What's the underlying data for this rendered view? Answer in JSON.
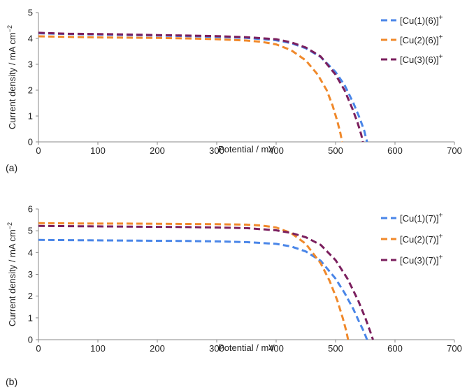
{
  "chart_data": [
    {
      "type": "line",
      "panel_label": "(a)",
      "xlabel": "Potential / mV",
      "ylabel": "Current density / mA cm",
      "ylabel_sup": "−2",
      "xlim": [
        0,
        700
      ],
      "ylim": [
        0,
        5
      ],
      "x_ticks": [
        "0",
        "100",
        "200",
        "300",
        "400",
        "500",
        "600",
        "700"
      ],
      "y_ticks": [
        "0",
        "1",
        "2",
        "3",
        "4",
        "5"
      ],
      "grid": false,
      "legend_position": "top-right",
      "series": [
        {
          "name": "[Cu(1)(6)]",
          "name_sup": "+",
          "color": "#4a86e8",
          "x": [
            0,
            50,
            100,
            150,
            200,
            250,
            300,
            350,
            400,
            425,
            450,
            475,
            500,
            515,
            530,
            540,
            548,
            553
          ],
          "y": [
            4.2,
            4.17,
            4.15,
            4.13,
            4.11,
            4.09,
            4.06,
            4.02,
            3.93,
            3.82,
            3.62,
            3.28,
            2.7,
            2.2,
            1.5,
            0.95,
            0.45,
            0.0
          ]
        },
        {
          "name": "[Cu(2)(6)]",
          "name_sup": "+",
          "color": "#f0892b",
          "x": [
            0,
            50,
            100,
            150,
            200,
            250,
            300,
            350,
            375,
            400,
            425,
            450,
            470,
            485,
            495,
            503,
            508,
            511
          ],
          "y": [
            4.08,
            4.06,
            4.04,
            4.03,
            4.02,
            4.0,
            3.97,
            3.92,
            3.87,
            3.77,
            3.55,
            3.15,
            2.6,
            2.0,
            1.4,
            0.8,
            0.35,
            0.0
          ]
        },
        {
          "name": "[Cu(3)(6)]",
          "name_sup": "+",
          "color": "#7b1f5e",
          "x": [
            0,
            50,
            100,
            150,
            200,
            250,
            300,
            350,
            400,
            425,
            450,
            475,
            500,
            515,
            528,
            537,
            543,
            546
          ],
          "y": [
            4.22,
            4.18,
            4.17,
            4.15,
            4.13,
            4.11,
            4.09,
            4.05,
            3.97,
            3.85,
            3.65,
            3.3,
            2.6,
            2.0,
            1.3,
            0.75,
            0.3,
            0.0
          ]
        }
      ]
    },
    {
      "type": "line",
      "panel_label": "(b)",
      "xlabel": "Potential / mV",
      "ylabel": "Current density / mA cm",
      "ylabel_sup": "−2",
      "xlim": [
        0,
        700
      ],
      "ylim": [
        0,
        6
      ],
      "x_ticks": [
        "0",
        "100",
        "200",
        "300",
        "400",
        "500",
        "600",
        "700"
      ],
      "y_ticks": [
        "0",
        "1",
        "2",
        "3",
        "4",
        "5",
        "6"
      ],
      "grid": false,
      "legend_position": "top-right",
      "series": [
        {
          "name": "[Cu(1)(7)]",
          "name_sup": "+",
          "color": "#4a86e8",
          "x": [
            0,
            50,
            100,
            150,
            200,
            250,
            300,
            350,
            400,
            425,
            450,
            475,
            500,
            515,
            530,
            540,
            548,
            553
          ],
          "y": [
            4.58,
            4.57,
            4.56,
            4.55,
            4.54,
            4.53,
            4.51,
            4.48,
            4.4,
            4.28,
            4.05,
            3.62,
            2.8,
            2.15,
            1.4,
            0.8,
            0.35,
            0.0
          ]
        },
        {
          "name": "[Cu(2)(7)]",
          "name_sup": "+",
          "color": "#f0892b",
          "x": [
            0,
            50,
            100,
            150,
            200,
            250,
            300,
            350,
            375,
            400,
            425,
            450,
            475,
            490,
            503,
            512,
            518,
            521
          ],
          "y": [
            5.35,
            5.34,
            5.33,
            5.33,
            5.32,
            5.31,
            5.3,
            5.28,
            5.24,
            5.15,
            4.9,
            4.4,
            3.5,
            2.7,
            1.8,
            1.0,
            0.4,
            0.0
          ]
        },
        {
          "name": "[Cu(3)(7)]",
          "name_sup": "+",
          "color": "#7b1f5e",
          "x": [
            0,
            50,
            100,
            150,
            200,
            250,
            300,
            350,
            400,
            425,
            450,
            475,
            500,
            520,
            538,
            550,
            558,
            563
          ],
          "y": [
            5.22,
            5.21,
            5.2,
            5.19,
            5.18,
            5.17,
            5.15,
            5.12,
            5.02,
            4.9,
            4.7,
            4.35,
            3.65,
            2.8,
            1.8,
            1.0,
            0.4,
            0.0
          ]
        }
      ]
    }
  ]
}
